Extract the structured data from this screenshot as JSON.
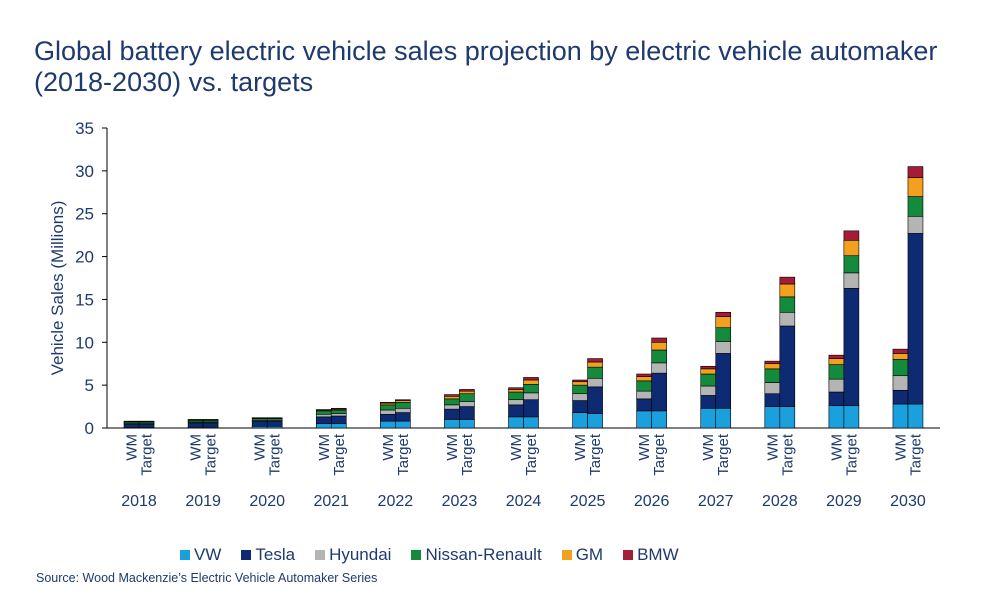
{
  "title": "Global battery electric vehicle sales projection by electric vehicle automaker (2018-2030) vs. targets",
  "source": "Source: Wood Mackenzie’s Electric Vehicle Automaker Series",
  "chart_data": {
    "type": "bar",
    "stacked": true,
    "ylabel": "Vehicle Sales (Millions)",
    "xlabel": "",
    "ylim": [
      0,
      35
    ],
    "yticks": [
      0,
      5,
      10,
      15,
      20,
      25,
      30,
      35
    ],
    "grid": false,
    "legend_position": "bottom",
    "years": [
      "2018",
      "2019",
      "2020",
      "2021",
      "2022",
      "2023",
      "2024",
      "2025",
      "2026",
      "2027",
      "2028",
      "2029",
      "2030"
    ],
    "bar_labels": [
      "WM",
      "Target"
    ],
    "series": [
      {
        "name": "VW",
        "color": "#1aa0dc",
        "wm": [
          0.05,
          0.1,
          0.2,
          0.5,
          0.8,
          1.0,
          1.3,
          1.8,
          2.0,
          2.3,
          2.5,
          2.6,
          2.8
        ],
        "target": [
          0.05,
          0.1,
          0.2,
          0.5,
          0.8,
          1.0,
          1.3,
          1.7,
          2.0,
          2.3,
          2.5,
          2.6,
          2.8
        ]
      },
      {
        "name": "Tesla",
        "color": "#0e2a72",
        "wm": [
          0.4,
          0.5,
          0.6,
          0.8,
          0.8,
          1.2,
          1.4,
          1.4,
          1.4,
          1.5,
          1.5,
          1.6,
          1.6
        ],
        "target": [
          0.4,
          0.5,
          0.6,
          0.9,
          1.0,
          1.5,
          2.0,
          3.1,
          4.4,
          6.4,
          9.4,
          13.7,
          19.9
        ]
      },
      {
        "name": "Hyundai",
        "color": "#b4b4b4",
        "wm": [
          0.05,
          0.1,
          0.1,
          0.3,
          0.5,
          0.5,
          0.6,
          0.8,
          0.9,
          1.1,
          1.3,
          1.5,
          1.7
        ],
        "target": [
          0.05,
          0.1,
          0.1,
          0.3,
          0.5,
          0.6,
          0.8,
          1.0,
          1.2,
          1.4,
          1.6,
          1.8,
          2.0
        ]
      },
      {
        "name": "Nissan-Renault",
        "color": "#138a3c",
        "wm": [
          0.2,
          0.2,
          0.2,
          0.4,
          0.6,
          0.7,
          0.9,
          1.0,
          1.2,
          1.4,
          1.6,
          1.7,
          1.9
        ],
        "target": [
          0.2,
          0.2,
          0.2,
          0.4,
          0.7,
          0.9,
          1.0,
          1.3,
          1.5,
          1.6,
          1.8,
          2.0,
          2.3
        ]
      },
      {
        "name": "GM",
        "color": "#f2a01e",
        "wm": [
          0.05,
          0.05,
          0.05,
          0.1,
          0.2,
          0.3,
          0.3,
          0.4,
          0.5,
          0.6,
          0.6,
          0.7,
          0.7
        ],
        "target": [
          0.05,
          0.05,
          0.05,
          0.1,
          0.2,
          0.3,
          0.5,
          0.6,
          0.9,
          1.3,
          1.5,
          1.8,
          2.2
        ]
      },
      {
        "name": "BMW",
        "color": "#a51c38",
        "wm": [
          0.05,
          0.05,
          0.05,
          0.05,
          0.1,
          0.2,
          0.2,
          0.2,
          0.3,
          0.3,
          0.3,
          0.4,
          0.5
        ],
        "target": [
          0.05,
          0.05,
          0.05,
          0.1,
          0.1,
          0.2,
          0.3,
          0.4,
          0.5,
          0.5,
          0.8,
          1.1,
          1.3
        ]
      }
    ]
  }
}
